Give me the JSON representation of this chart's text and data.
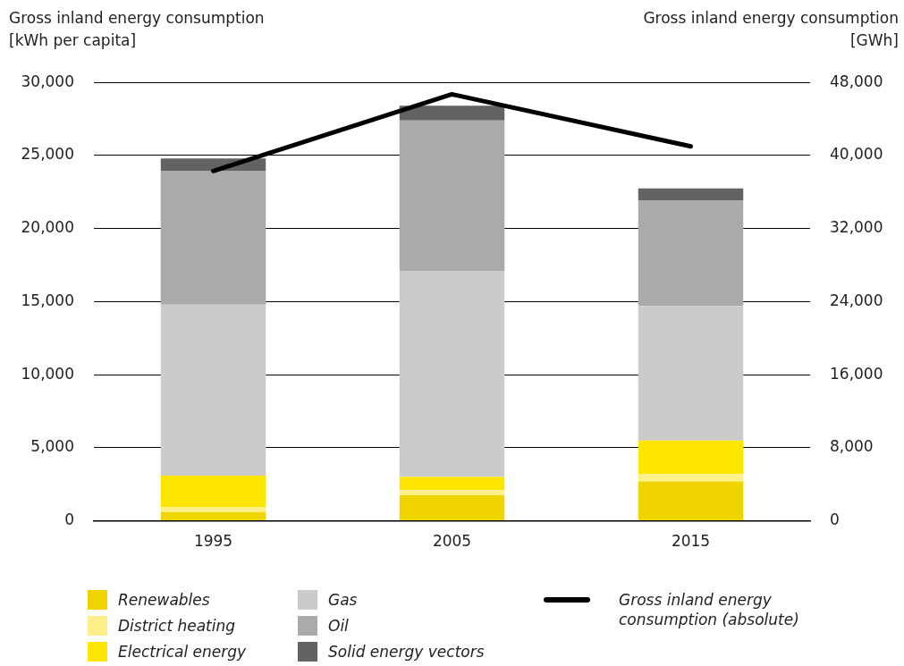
{
  "chart_data": {
    "type": "bar",
    "stacked": true,
    "categories": [
      "1995",
      "2005",
      "2015"
    ],
    "ylabel": "Gross inland energy consumption [kWh per capita]",
    "y2label": "Gross inland energy consumption [GWh]",
    "ylim": [
      0,
      30000
    ],
    "yticks": [
      0,
      {
        "value": 5000,
        "label": "5,000"
      },
      {
        "value": 10000,
        "label": "10,000"
      },
      {
        "value": 15000,
        "label": "15,000"
      },
      {
        "value": 20000,
        "label": "20,000"
      },
      {
        "value": 25000,
        "label": "25,000"
      },
      {
        "value": 30000,
        "label": "30,000"
      }
    ],
    "y2lim": [
      0,
      48000
    ],
    "y2ticks": [
      0,
      {
        "value": 8000,
        "label": "8,000"
      },
      {
        "value": 16000,
        "label": "16,000"
      },
      {
        "value": 24000,
        "label": "24,000"
      },
      {
        "value": 32000,
        "label": "32,000"
      },
      {
        "value": 40000,
        "label": "40,000"
      },
      {
        "value": 48000,
        "label": "48,000"
      }
    ],
    "grid": "y",
    "legend": "bottom",
    "series": [
      {
        "name": "Renewables",
        "color": "#f0d400",
        "values": [
          600,
          1750,
          2700
        ]
      },
      {
        "name": "District heating",
        "color": "#fff08a",
        "values": [
          350,
          350,
          500
        ]
      },
      {
        "name": "Electrical energy",
        "color": "#ffe600",
        "values": [
          2150,
          900,
          2300
        ]
      },
      {
        "name": "Gas",
        "color": "#cbcbcb",
        "values": [
          11700,
          14100,
          9200
        ]
      },
      {
        "name": "Oil",
        "color": "#aaaaaa",
        "values": [
          9150,
          10300,
          7200
        ]
      },
      {
        "name": "Solid energy vectors",
        "color": "#636363",
        "values": [
          850,
          1000,
          850
        ]
      },
      {
        "name": "Gross inland energy consumption (absolute)",
        "type": "line",
        "axis": "y2",
        "color": "#000000",
        "marker": "none",
        "values": [
          38300,
          46700,
          41000
        ]
      }
    ]
  }
}
